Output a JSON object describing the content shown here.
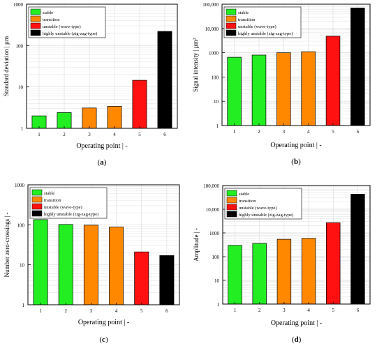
{
  "legend_labels": [
    "stable",
    "transition",
    "unstable (wave-type)",
    "highly unstable (zig-zag-type)"
  ],
  "colors": {
    "stable": "#22ee22",
    "transition": "#ff8800",
    "unstable": "#ff1111",
    "highly_unstable": "#000000",
    "grid": "#d9d9d9"
  },
  "chart_data": [
    {
      "type": "bar",
      "panel_label": "(a)",
      "scale": "log",
      "categories": [
        "1",
        "2",
        "3",
        "4",
        "5",
        "6"
      ],
      "values": [
        2.0,
        2.4,
        3.1,
        3.4,
        14.5,
        220
      ],
      "bar_classes": [
        "stable",
        "stable",
        "transition",
        "transition",
        "unstable",
        "highly_unstable"
      ],
      "xlabel": "Operating point | -",
      "ylabel": "Standard deviation | µm",
      "ylabel_sup": "",
      "ylim": [
        1,
        1000
      ],
      "yticks": [
        1,
        10,
        100,
        1000
      ],
      "ytick_labels": [
        "1",
        "10",
        "100",
        "1000"
      ],
      "grid": true,
      "legend_position": "top-left"
    },
    {
      "type": "bar",
      "panel_label": "(b)",
      "scale": "log",
      "categories": [
        "1",
        "2",
        "3",
        "4",
        "5",
        "6"
      ],
      "values": [
        650,
        800,
        1000,
        1100,
        4800,
        70000
      ],
      "bar_classes": [
        "stable",
        "stable",
        "transition",
        "transition",
        "unstable",
        "highly_unstable"
      ],
      "xlabel": "Operating point | -",
      "ylabel": "Signal intensity | µm",
      "ylabel_sup": "2",
      "ylim": [
        1,
        100000
      ],
      "yticks": [
        1,
        10,
        100,
        1000,
        10000,
        100000
      ],
      "ytick_labels": [
        "1",
        "10",
        "100",
        "1000",
        "10,000",
        "100,000"
      ],
      "grid": true,
      "legend_position": "top-left"
    },
    {
      "type": "bar",
      "panel_label": "(c)",
      "scale": "log",
      "categories": [
        "1",
        "2",
        "3",
        "4",
        "5",
        "6"
      ],
      "values": [
        135,
        102,
        98,
        88,
        21,
        17
      ],
      "bar_classes": [
        "stable",
        "stable",
        "transition",
        "transition",
        "unstable",
        "highly_unstable"
      ],
      "xlabel": "Operating point | -",
      "ylabel": "Number zero-crossings | -",
      "ylabel_sup": "",
      "ylim": [
        1,
        1000
      ],
      "yticks": [
        1,
        10,
        100,
        1000
      ],
      "ytick_labels": [
        "1",
        "10",
        "100",
        "1000"
      ],
      "grid": true,
      "legend_position": "top-left"
    },
    {
      "type": "bar",
      "panel_label": "(d)",
      "scale": "log",
      "categories": [
        "1",
        "2",
        "3",
        "4",
        "5",
        "6"
      ],
      "values": [
        300,
        360,
        540,
        590,
        2700,
        43000
      ],
      "bar_classes": [
        "stable",
        "stable",
        "transition",
        "transition",
        "unstable",
        "highly_unstable"
      ],
      "xlabel": "Operating point | -",
      "ylabel": "Amplitude | -",
      "ylabel_sup": "",
      "ylim": [
        1,
        100000
      ],
      "yticks": [
        1,
        10,
        100,
        1000,
        10000,
        100000
      ],
      "ytick_labels": [
        "1",
        "10",
        "100",
        "1000",
        "10,000",
        "100,000"
      ],
      "grid": true,
      "legend_position": "top-left"
    }
  ]
}
